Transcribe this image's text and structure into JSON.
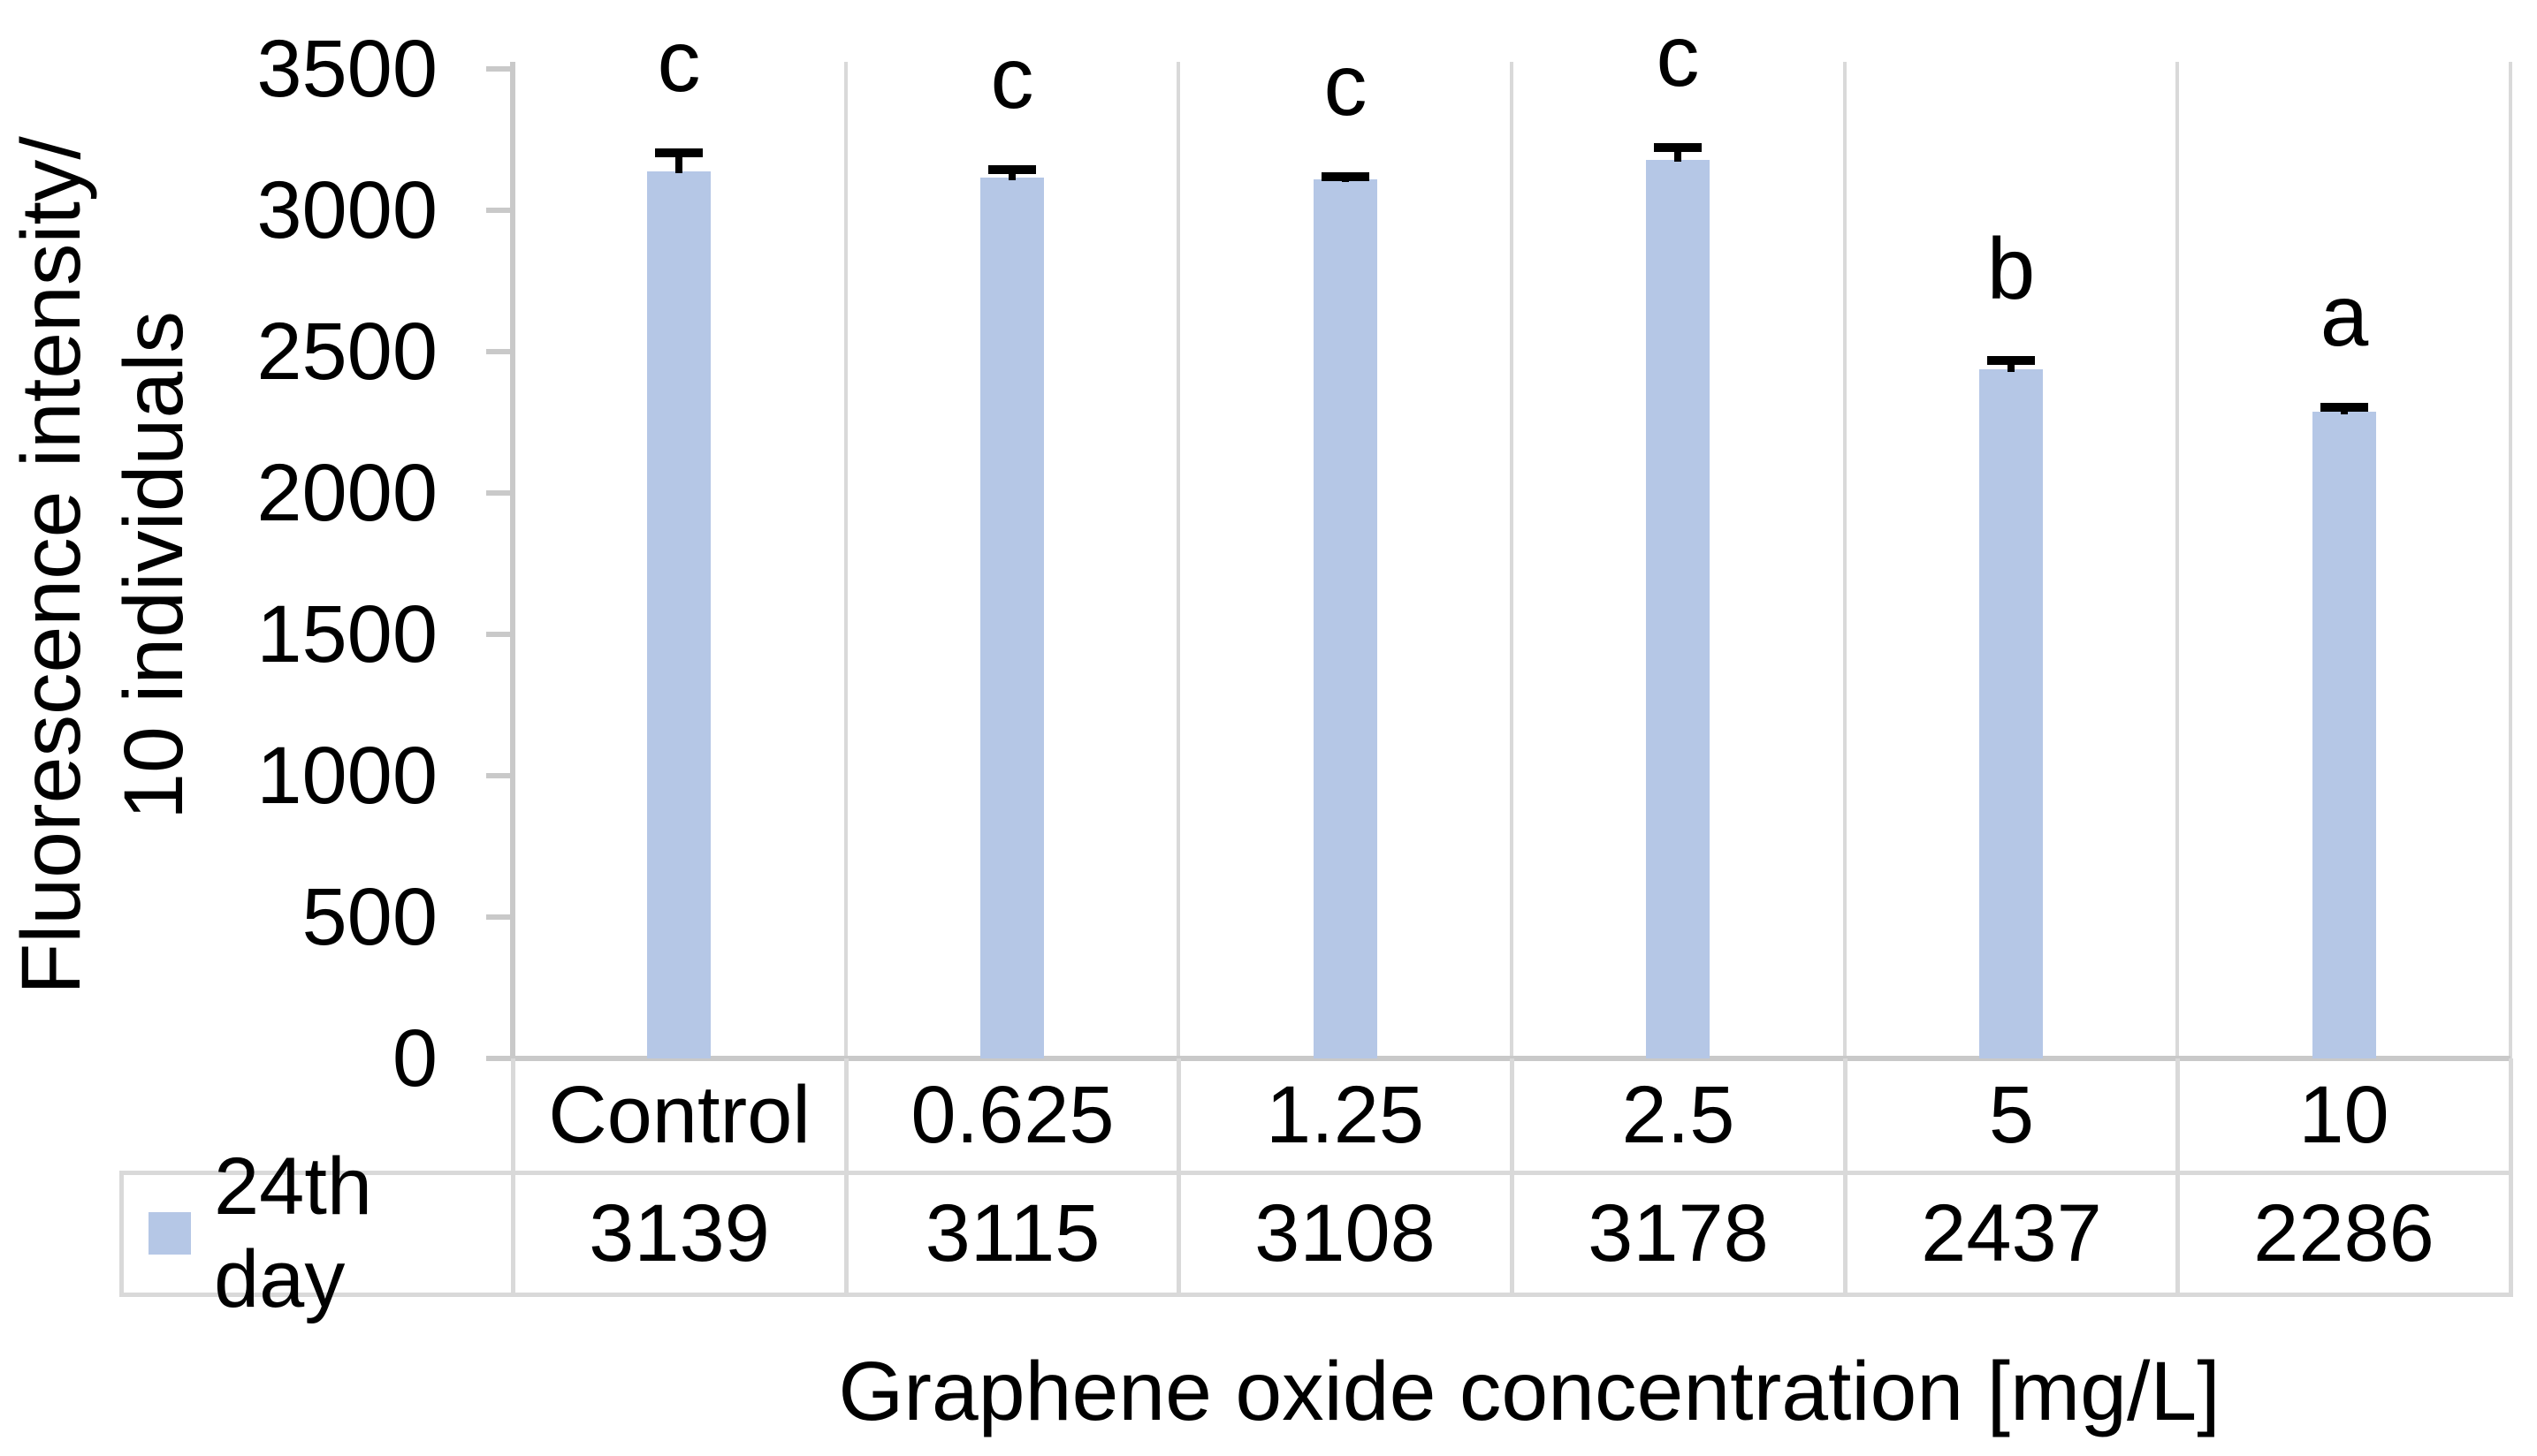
{
  "figure": {
    "y_axis_title_line1": "Fluorescence intensity/",
    "y_axis_title_line2": "10 individuals",
    "x_axis_title": "Graphene oxide concentration [mg/L]"
  },
  "chart_data": {
    "type": "bar",
    "title": "",
    "categories": [
      "Control",
      "0.625",
      "1.25",
      "2.5",
      "5",
      "10"
    ],
    "series": [
      {
        "name": "24th day",
        "values": [
          3139,
          3115,
          3108,
          3178,
          2437,
          2286
        ],
        "error_bars_estimated": [
          65,
          30,
          12,
          45,
          33,
          18
        ],
        "significance_letters": [
          "c",
          "c",
          "c",
          "c",
          "b",
          "a"
        ]
      }
    ],
    "xlabel": "Graphene oxide concentration [mg/L]",
    "ylabel": "Fluorescence intensity/ 10 individuals",
    "y_ticks": [
      3500,
      3000,
      2500,
      2000,
      1500,
      1000,
      500,
      0
    ],
    "ylim": [
      0,
      3500
    ],
    "grid": "vertical category separator lines only",
    "legend_position": "data table row header, bottom left",
    "data_table_shown": true,
    "colors": {
      "bar_fill": "#b5c7e6",
      "gridline": "#d9d9d9",
      "axis_line": "#c9c9c9",
      "table_border": "#d9d9d9",
      "error_bar": "#000000",
      "text": "#000000",
      "background": "#ffffff"
    }
  }
}
